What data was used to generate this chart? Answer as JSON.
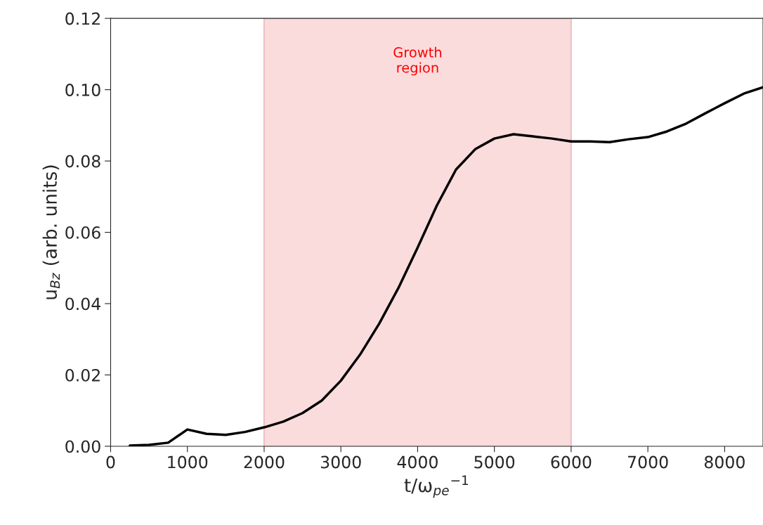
{
  "chart_data": {
    "type": "line",
    "xlabel": "t/ω$_{pe}$$^{−1}$",
    "ylabel": "u$_{Bz}$ (arb. units)",
    "x": [
      250,
      500,
      750,
      1000,
      1250,
      1500,
      1750,
      2000,
      2250,
      2500,
      2750,
      3000,
      3250,
      3500,
      3750,
      4000,
      4250,
      4500,
      4750,
      5000,
      5250,
      5500,
      5750,
      6000,
      6250,
      6500,
      6750,
      7000,
      7250,
      7500,
      7750,
      8000,
      8250,
      8500
    ],
    "series": [
      {
        "color": "#000000",
        "values": [
          0.0002,
          0.0004,
          0.001,
          0.0047,
          0.0035,
          0.0032,
          0.004,
          0.0053,
          0.0069,
          0.0093,
          0.0128,
          0.0184,
          0.0257,
          0.0344,
          0.0444,
          0.0557,
          0.0675,
          0.0776,
          0.0833,
          0.0863,
          0.0875,
          0.0869,
          0.0863,
          0.0855,
          0.0855,
          0.0853,
          0.0861,
          0.0867,
          0.0883,
          0.0905,
          0.0934,
          0.0962,
          0.0989,
          0.1007
        ]
      }
    ],
    "xlim": [
      0,
      8500
    ],
    "ylim": [
      0,
      0.12
    ],
    "xticks": [
      0,
      1000,
      2000,
      3000,
      4000,
      5000,
      6000,
      7000,
      8000
    ],
    "yticks": [
      {
        "value": 0,
        "label": "0.00"
      },
      {
        "value": 0.02,
        "label": "0.02"
      },
      {
        "value": 0.04,
        "label": "0.04"
      },
      {
        "value": 0.06,
        "label": "0.06"
      },
      {
        "value": 0.08,
        "label": "0.08"
      },
      {
        "value": 0.1,
        "label": "0.10"
      },
      {
        "value": 0.12,
        "label": "0.12"
      }
    ],
    "bands": [
      {
        "axis": "x",
        "from": 2000,
        "to": 6000,
        "label": "Growth\nregion",
        "color": "#fbdcdd"
      }
    ],
    "grid": false,
    "line_style": "solid",
    "marker": "none"
  }
}
